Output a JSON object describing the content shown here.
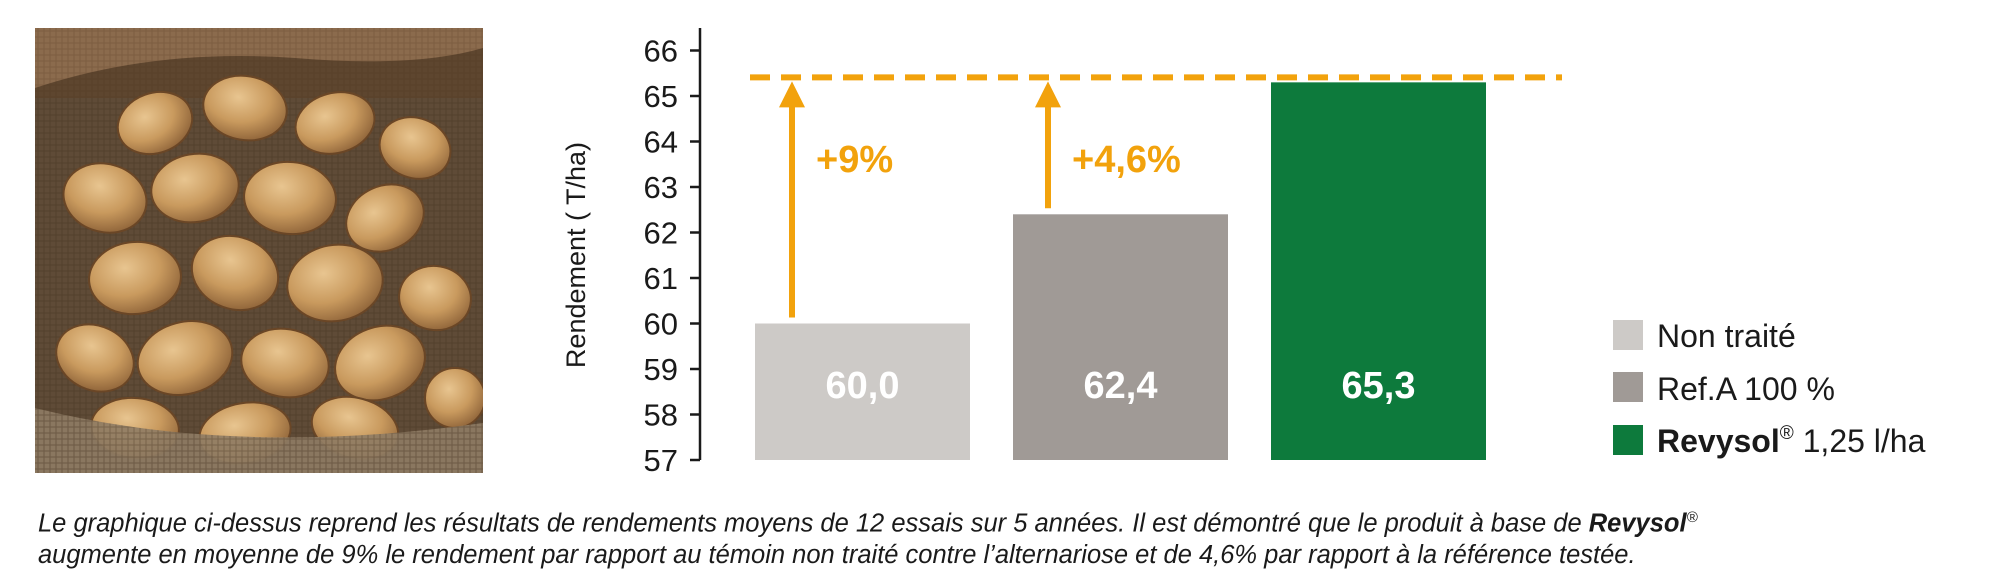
{
  "colors": {
    "non_traite": "#cdcac7",
    "ref_a": "#a09a96",
    "revysol": "#0d7a3c",
    "accent": "#f2a20c",
    "axis": "#1a1a1a"
  },
  "photo": {
    "icon": "potatoes-in-burlap-sack-icon"
  },
  "chart_data": {
    "type": "bar",
    "title": "",
    "xlabel": "",
    "ylabel": "Rendement ( T/ha)",
    "ylim": [
      57,
      66
    ],
    "yticks": [
      66,
      65,
      64,
      63,
      62,
      61,
      60,
      59,
      58,
      57
    ],
    "grid": false,
    "legend_position": "right",
    "categories": [
      "Non traité",
      "Ref.A 100 %",
      "Revysol 1,25 l/ha"
    ],
    "values": [
      60.0,
      62.4,
      65.3
    ],
    "value_labels": [
      "60,0",
      "62,4",
      "65,3"
    ],
    "reference_line": {
      "value": 65.3,
      "style": "dashed"
    },
    "annotations": [
      {
        "from_category": "Non traité",
        "text": "+9%"
      },
      {
        "from_category": "Ref.A 100 %",
        "text": "+4,6%"
      }
    ]
  },
  "legend": {
    "items": [
      {
        "key": "non_traite",
        "text": "Non traité"
      },
      {
        "key": "ref_a",
        "text": "Ref.A 100 %"
      },
      {
        "key": "revysol",
        "brand": "Revysol",
        "sup": "®",
        "text": " 1,25 l/ha"
      }
    ]
  },
  "caption": {
    "part1": "Le graphique ci-dessus reprend les résultats de rendements moyens de 12 essais sur 5 années. Il est démontré que le produit à base de ",
    "brand": "Revysol",
    "sup": "®",
    "part2": "augmente en moyenne de 9% le rendement par rapport au témoin non traité contre l’alternariose et de 4,6% par rapport à la référence testée."
  }
}
